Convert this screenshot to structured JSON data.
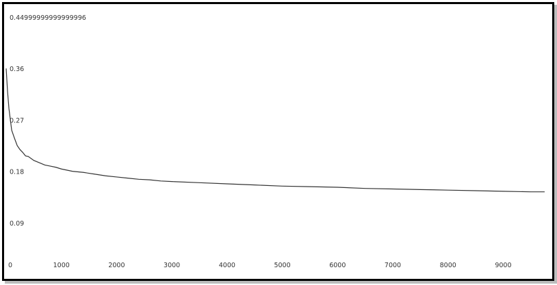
{
  "chart_data": {
    "type": "line",
    "title": "",
    "xlabel": "",
    "ylabel": "",
    "grid": false,
    "legend": "none",
    "xlim": [
      0,
      9800
    ],
    "ylim": [
      0,
      0.45
    ],
    "x_ticks": [
      0,
      1000,
      2000,
      3000,
      4000,
      5000,
      6000,
      7000,
      8000,
      9000
    ],
    "x_tick_labels": [
      "0",
      "1000",
      "2000",
      "3000",
      "4000",
      "5000",
      "6000",
      "7000",
      "8000",
      "9000"
    ],
    "y_ticks": [
      0.09,
      0.18,
      0.27,
      0.36,
      0.45
    ],
    "y_tick_labels": [
      "0.09",
      "0.18",
      "0.27",
      "0.36",
      "0.44999999999999996"
    ],
    "line_color": "#333333",
    "series": [
      {
        "x": [
          0,
          25,
          50,
          100,
          150,
          200,
          250,
          300,
          350,
          400,
          500,
          600,
          700,
          800,
          900,
          1000,
          1200,
          1400,
          1600,
          1800,
          2000,
          2200,
          2400,
          2600,
          2800,
          3000,
          3500,
          4000,
          4500,
          5000,
          5500,
          6000,
          6500,
          7000,
          7500,
          8000,
          8500,
          9000,
          9500,
          9750
        ],
        "y": [
          0.36,
          0.32,
          0.29,
          0.252,
          0.238,
          0.225,
          0.218,
          0.213,
          0.207,
          0.206,
          0.199,
          0.195,
          0.191,
          0.189,
          0.187,
          0.184,
          0.18,
          0.178,
          0.175,
          0.172,
          0.17,
          0.168,
          0.166,
          0.165,
          0.163,
          0.162,
          0.16,
          0.158,
          0.156,
          0.154,
          0.153,
          0.152,
          0.15,
          0.149,
          0.148,
          0.147,
          0.146,
          0.145,
          0.144,
          0.144
        ]
      }
    ]
  }
}
